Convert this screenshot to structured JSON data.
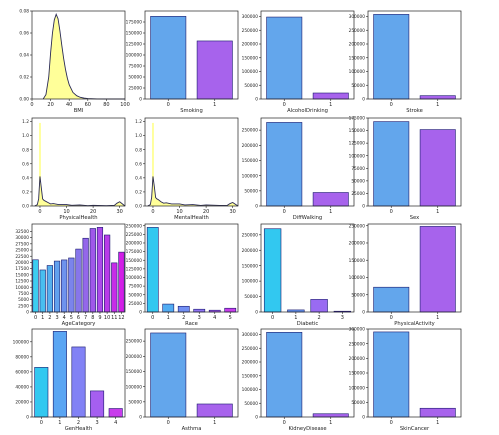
{
  "colors": {
    "blue": "#63a6ec",
    "purple": "#a763ec",
    "kde_fill": "#ffff99",
    "kde_line": "#2a2a55",
    "axis": "#222222",
    "edge": "#1a1a6e"
  },
  "chart_data": [
    {
      "type": "area",
      "xlabel": "BMI",
      "xlim": [
        0,
        100
      ],
      "ylim": [
        0,
        0.08
      ],
      "xticks": [
        0,
        20,
        40,
        60,
        80,
        100
      ],
      "yticks": [
        0.0,
        0.02,
        0.04,
        0.06,
        0.08
      ],
      "ytick_labels": [
        "0.00",
        "0.02",
        "0.04",
        "0.06",
        "0.08"
      ],
      "x": [
        12,
        15,
        18,
        20,
        22,
        24,
        26,
        28,
        30,
        32,
        34,
        36,
        38,
        40,
        44,
        48,
        52,
        56,
        60,
        70,
        80,
        100
      ],
      "values": [
        0,
        0.004,
        0.02,
        0.042,
        0.06,
        0.072,
        0.077,
        0.073,
        0.062,
        0.049,
        0.037,
        0.027,
        0.019,
        0.013,
        0.006,
        0.003,
        0.0015,
        0.0008,
        0.0004,
        0.0001,
        0,
        0
      ]
    },
    {
      "type": "bar",
      "xlabel": "Smoking",
      "categories": [
        "0",
        "1"
      ],
      "values": [
        187887,
        131908
      ],
      "ylim": [
        0,
        200000
      ],
      "yticks": [
        0,
        25000,
        50000,
        75000,
        100000,
        125000,
        150000,
        175000
      ],
      "ytick_labels": [
        "0",
        "25000",
        "50000",
        "75000",
        "100000",
        "125000",
        "150000",
        "175000"
      ]
    },
    {
      "type": "bar",
      "xlabel": "AlcoholDrinking",
      "categories": [
        "0",
        "1"
      ],
      "values": [
        298018,
        21777
      ],
      "ylim": [
        0,
        320000
      ],
      "yticks": [
        0,
        50000,
        100000,
        150000,
        200000,
        250000,
        300000
      ],
      "ytick_labels": [
        "0",
        "50000",
        "100000",
        "150000",
        "200000",
        "250000",
        "300000"
      ]
    },
    {
      "type": "bar",
      "xlabel": "Stroke",
      "categories": [
        "0",
        "1"
      ],
      "values": [
        307726,
        12069
      ],
      "ylim": [
        0,
        320000
      ],
      "yticks": [
        0,
        50000,
        100000,
        150000,
        200000,
        250000,
        300000
      ],
      "ytick_labels": [
        "0",
        "50000",
        "100000",
        "150000",
        "200000",
        "250000",
        "300000"
      ]
    },
    {
      "type": "area",
      "xlabel": "PhysicalHealth",
      "xlim": [
        -3,
        32
      ],
      "ylim": [
        0,
        1.25
      ],
      "xticks": [
        0,
        10,
        20,
        30
      ],
      "yticks": [
        0.0,
        0.2,
        0.4,
        0.6,
        0.8,
        1.0,
        1.2
      ],
      "ytick_labels": [
        "0.0",
        "0.2",
        "0.4",
        "0.6",
        "0.8",
        "1.0",
        "1.2"
      ],
      "x": [
        -2,
        -1,
        -0.5,
        0,
        0.5,
        1,
        1.5,
        2,
        3,
        4,
        5,
        7,
        10,
        12,
        15,
        18,
        20,
        25,
        28,
        29,
        30,
        31,
        32
      ],
      "values": [
        0,
        0.02,
        0.1,
        0.42,
        0.26,
        0.1,
        0.08,
        0.07,
        0.05,
        0.03,
        0.035,
        0.02,
        0.02,
        0.01,
        0.015,
        0.005,
        0.01,
        0.005,
        0.01,
        0.04,
        0.06,
        0.03,
        0
      ]
    },
    {
      "type": "area",
      "xlabel": "MentalHealth",
      "xlim": [
        -3,
        32
      ],
      "ylim": [
        0,
        1.25
      ],
      "xticks": [
        0,
        10,
        20,
        30
      ],
      "yticks": [
        0.0,
        0.2,
        0.4,
        0.6,
        0.8,
        1.0,
        1.2
      ],
      "ytick_labels": [
        "0.0",
        "0.2",
        "0.4",
        "0.6",
        "0.8",
        "1.0",
        "1.2"
      ],
      "x": [
        -2,
        -1,
        -0.5,
        0,
        0.5,
        1,
        1.5,
        2,
        3,
        4,
        5,
        7,
        10,
        12,
        15,
        18,
        20,
        25,
        28,
        29,
        30,
        31,
        32
      ],
      "values": [
        0,
        0.02,
        0.12,
        0.42,
        0.28,
        0.12,
        0.1,
        0.09,
        0.06,
        0.04,
        0.045,
        0.03,
        0.03,
        0.015,
        0.02,
        0.008,
        0.015,
        0.008,
        0.01,
        0.035,
        0.05,
        0.025,
        0
      ]
    },
    {
      "type": "bar",
      "xlabel": "DiffWalking",
      "categories": [
        "0",
        "1"
      ],
      "values": [
        275385,
        44410
      ],
      "ylim": [
        0,
        290000
      ],
      "yticks": [
        0,
        50000,
        100000,
        150000,
        200000,
        250000
      ],
      "ytick_labels": [
        "0",
        "50000",
        "100000",
        "150000",
        "200000",
        "250000"
      ]
    },
    {
      "type": "bar",
      "xlabel": "Sex",
      "categories": [
        "0",
        "1"
      ],
      "values": [
        167805,
        151990
      ],
      "ylim": [
        0,
        175000
      ],
      "yticks": [
        0,
        25000,
        50000,
        75000,
        100000,
        125000,
        150000,
        175000
      ],
      "ytick_labels": [
        "0",
        "25000",
        "50000",
        "75000",
        "100000",
        "125000",
        "150000",
        "175000"
      ]
    },
    {
      "type": "bar",
      "xlabel": "AgeCategory",
      "categories": [
        "0",
        "1",
        "2",
        "3",
        "4",
        "5",
        "6",
        "7",
        "8",
        "9",
        "10",
        "11",
        "12"
      ],
      "values": [
        21064,
        16955,
        18753,
        20550,
        21006,
        21791,
        25382,
        29757,
        33686,
        34151,
        31065,
        19819,
        24153
      ],
      "ylim": [
        0,
        35500
      ],
      "yticks": [
        0,
        2500,
        5000,
        7500,
        10000,
        12500,
        15000,
        17500,
        20000,
        22500,
        25000,
        27500,
        30000,
        32500
      ],
      "ytick_labels": [
        "0",
        "2500",
        "5000",
        "7500",
        "10000",
        "12500",
        "15000",
        "17500",
        "20000",
        "22500",
        "25000",
        "27500",
        "30000",
        "32500"
      ],
      "gradient": true
    },
    {
      "type": "bar",
      "xlabel": "Race",
      "categories": [
        "0",
        "1",
        "2",
        "3",
        "4",
        "5"
      ],
      "values": [
        245212,
        22939,
        16578,
        8068,
        5202,
        10928
      ],
      "ylim": [
        0,
        255000
      ],
      "yticks": [
        0,
        25000,
        50000,
        75000,
        100000,
        125000,
        150000,
        175000,
        200000,
        225000,
        250000
      ],
      "ytick_labels": [
        "0",
        "25000",
        "50000",
        "75000",
        "100000",
        "125000",
        "150000",
        "175000",
        "200000",
        "225000",
        "250000"
      ],
      "gradient": true
    },
    {
      "type": "bar",
      "xlabel": "Diabetic",
      "categories": [
        "0",
        "1",
        "2",
        "3"
      ],
      "values": [
        269653,
        6781,
        40802,
        2559
      ],
      "ylim": [
        0,
        285000
      ],
      "yticks": [
        0,
        50000,
        100000,
        150000,
        200000,
        250000
      ],
      "ytick_labels": [
        "0",
        "50000",
        "100000",
        "150000",
        "200000",
        "250000"
      ],
      "gradient": true
    },
    {
      "type": "bar",
      "xlabel": "PhysicalActivity",
      "categories": [
        "0",
        "1"
      ],
      "values": [
        71838,
        247957
      ],
      "ylim": [
        0,
        255000
      ],
      "yticks": [
        0,
        50000,
        100000,
        150000,
        200000,
        250000
      ],
      "ytick_labels": [
        "0",
        "50000",
        "100000",
        "150000",
        "200000",
        "250000"
      ]
    },
    {
      "type": "bar",
      "xlabel": "GenHealth",
      "categories": [
        "0",
        "1",
        "2",
        "3",
        "4"
      ],
      "values": [
        66000,
        113858,
        93129,
        34677,
        11289
      ],
      "ylim": [
        0,
        117000
      ],
      "yticks": [
        0,
        20000,
        40000,
        60000,
        80000,
        100000
      ],
      "ytick_labels": [
        "0",
        "20000",
        "40000",
        "60000",
        "80000",
        "100000"
      ],
      "gradient": true
    },
    {
      "type": "bar",
      "xlabel": "Asthma",
      "categories": [
        "0",
        "1"
      ],
      "values": [
        276923,
        42872
      ],
      "ylim": [
        0,
        290000
      ],
      "yticks": [
        0,
        50000,
        100000,
        150000,
        200000,
        250000
      ],
      "ytick_labels": [
        "0",
        "50000",
        "100000",
        "150000",
        "200000",
        "250000"
      ]
    },
    {
      "type": "bar",
      "xlabel": "KidneyDisease",
      "categories": [
        "0",
        "1"
      ],
      "values": [
        308016,
        11779
      ],
      "ylim": [
        0,
        320000
      ],
      "yticks": [
        0,
        50000,
        100000,
        150000,
        200000,
        250000,
        300000
      ],
      "ytick_labels": [
        "0",
        "50000",
        "100000",
        "150000",
        "200000",
        "250000",
        "300000"
      ]
    },
    {
      "type": "bar",
      "xlabel": "SkinCancer",
      "categories": [
        "0",
        "1"
      ],
      "values": [
        289976,
        29819
      ],
      "ylim": [
        0,
        300000
      ],
      "yticks": [
        0,
        50000,
        100000,
        150000,
        200000,
        250000,
        300000
      ],
      "ytick_labels": [
        "0",
        "50000",
        "100000",
        "150000",
        "200000",
        "250000",
        "300000"
      ]
    }
  ]
}
